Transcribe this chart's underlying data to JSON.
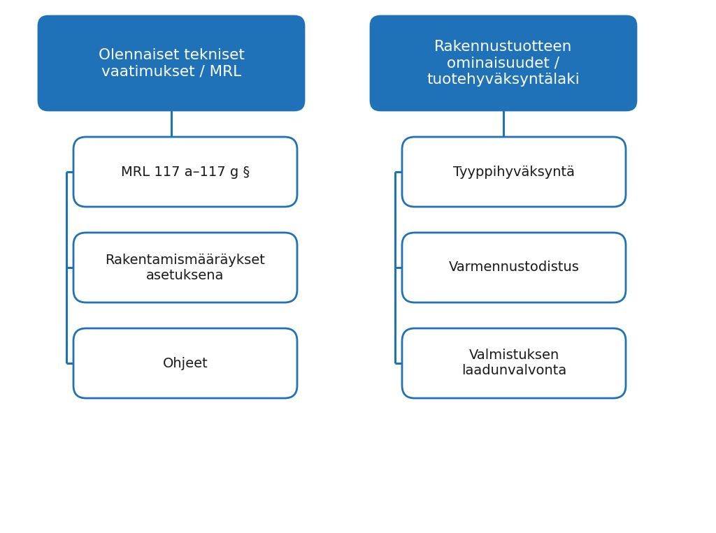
{
  "bg_color": "#ffffff",
  "blue_fill": "#1F72B8",
  "blue_border": "#1F72B8",
  "white_fill": "#ffffff",
  "box_border_color": "#1F72B8",
  "text_color_white": "#ffffff",
  "text_color_dark": "#1a1a1a",
  "left_header": "Olennaiset tekniset\nvaatimukset / MRL",
  "right_header": "Rakennustuotteen\nominaisuudet /\ntuotehyväksyntälaki",
  "left_items": [
    "MRL 117 a–117 g §",
    "Rakentamismääräykset\nasetuksena",
    "Ohjeet"
  ],
  "right_items": [
    "Tyyppihyväksyntä",
    "Varmennustodistus",
    "Valmistuksen\nlaadunvalvonta"
  ],
  "figsize": [
    10.24,
    7.63
  ],
  "dpi": 100
}
